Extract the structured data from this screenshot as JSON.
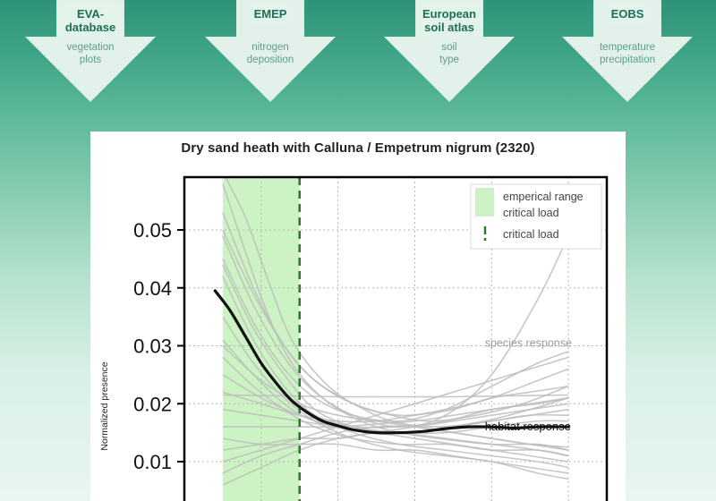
{
  "sources": [
    {
      "title": "EVA-\ndatabase",
      "subtitle": "vegetation\nplots"
    },
    {
      "title": "EMEP",
      "subtitle": "nitrogen\ndeposition"
    },
    {
      "title": "European\nsoil atlas",
      "subtitle": "soil\ntype"
    },
    {
      "title": "EOBS",
      "subtitle": "temperature\nprecipitation"
    }
  ],
  "colors": {
    "accent": "#1c6e58",
    "critical_line": "#2a7a2a",
    "range_fill": "#cdf3c4",
    "species": "#bdbdbd",
    "habitat": "#111111"
  },
  "chart_data": {
    "type": "line",
    "title": "Dry sand heath with Calluna / Empetrum nigrum (2320)",
    "ylabel": "Normalized presence",
    "xlabel": "",
    "ylim": [
      0.0,
      0.058
    ],
    "xlim": [
      0,
      55
    ],
    "yticks": [
      {
        "v": 0.01,
        "label": "0.01"
      },
      {
        "v": 0.02,
        "label": "0.02"
      },
      {
        "v": 0.03,
        "label": "0.03"
      },
      {
        "v": 0.04,
        "label": "0.04"
      },
      {
        "v": 0.05,
        "label": "0.05"
      }
    ],
    "xgrid": [
      10,
      20,
      30,
      40,
      50
    ],
    "empirical_range": [
      5,
      15
    ],
    "critical_load": 15,
    "legend": [
      {
        "label": "emperical range\ncritical load",
        "type": "range"
      },
      {
        "label": "critical load",
        "type": "dashed-line"
      }
    ],
    "annotations": [
      {
        "text": "species response",
        "x": 39,
        "y": 0.0305,
        "series": "species"
      },
      {
        "text": "habitat response",
        "x": 39,
        "y": 0.016,
        "series": "habitat"
      }
    ],
    "series": [
      {
        "name": "habitat response",
        "kind": "habitat",
        "x": [
          4,
          6,
          8,
          10,
          12,
          14,
          16,
          18,
          20,
          22,
          25,
          28,
          31,
          34,
          37,
          40,
          43,
          46,
          50
        ],
        "y": [
          0.0395,
          0.036,
          0.0315,
          0.027,
          0.0235,
          0.0205,
          0.0185,
          0.017,
          0.0162,
          0.0155,
          0.015,
          0.015,
          0.0152,
          0.0157,
          0.016,
          0.016,
          0.0158,
          0.016,
          0.016
        ]
      },
      {
        "name": "s1",
        "kind": "species",
        "x": [
          5,
          8,
          11,
          14,
          18,
          22,
          27,
          32,
          38,
          44,
          50
        ],
        "y": [
          0.06,
          0.052,
          0.041,
          0.031,
          0.024,
          0.02,
          0.018,
          0.017,
          0.018,
          0.02,
          0.023
        ]
      },
      {
        "name": "s2",
        "kind": "species",
        "x": [
          5,
          8,
          11,
          14,
          18,
          23,
          28,
          33,
          40,
          46,
          50
        ],
        "y": [
          0.058,
          0.046,
          0.035,
          0.027,
          0.021,
          0.017,
          0.015,
          0.014,
          0.013,
          0.013,
          0.012
        ]
      },
      {
        "name": "s3",
        "kind": "species",
        "x": [
          5,
          9,
          13,
          17,
          22,
          27,
          33,
          39,
          45,
          50
        ],
        "y": [
          0.053,
          0.04,
          0.03,
          0.024,
          0.02,
          0.017,
          0.016,
          0.017,
          0.019,
          0.021
        ]
      },
      {
        "name": "s4",
        "kind": "species",
        "x": [
          5,
          9,
          13,
          17,
          22,
          28,
          34,
          40,
          46,
          50
        ],
        "y": [
          0.049,
          0.037,
          0.028,
          0.022,
          0.018,
          0.016,
          0.018,
          0.025,
          0.038,
          0.049
        ]
      },
      {
        "name": "s5",
        "kind": "species",
        "x": [
          5,
          9,
          13,
          17,
          22,
          28,
          34,
          40,
          46,
          50
        ],
        "y": [
          0.045,
          0.034,
          0.026,
          0.021,
          0.018,
          0.017,
          0.019,
          0.023,
          0.027,
          0.029
        ]
      },
      {
        "name": "s6",
        "kind": "species",
        "x": [
          5,
          9,
          13,
          17,
          22,
          28,
          34,
          40,
          46,
          50
        ],
        "y": [
          0.042,
          0.031,
          0.023,
          0.018,
          0.015,
          0.013,
          0.012,
          0.011,
          0.01,
          0.009
        ]
      },
      {
        "name": "s7",
        "kind": "species",
        "x": [
          5,
          9,
          13,
          17,
          22,
          28,
          34,
          40,
          46,
          50
        ],
        "y": [
          0.038,
          0.029,
          0.022,
          0.018,
          0.016,
          0.015,
          0.015,
          0.016,
          0.017,
          0.017
        ]
      },
      {
        "name": "s8",
        "kind": "species",
        "x": [
          5,
          9,
          13,
          17,
          22,
          28,
          34,
          40,
          46,
          50
        ],
        "y": [
          0.035,
          0.027,
          0.021,
          0.017,
          0.014,
          0.012,
          0.011,
          0.01,
          0.008,
          0.007
        ]
      },
      {
        "name": "s9",
        "kind": "species",
        "x": [
          5,
          9,
          13,
          17,
          22,
          28,
          34,
          40,
          46,
          50
        ],
        "y": [
          0.031,
          0.025,
          0.02,
          0.017,
          0.016,
          0.016,
          0.017,
          0.019,
          0.02,
          0.021
        ]
      },
      {
        "name": "s10",
        "kind": "species",
        "x": [
          5,
          9,
          13,
          17,
          22,
          28,
          34,
          40,
          46,
          50
        ],
        "y": [
          0.028,
          0.023,
          0.019,
          0.016,
          0.014,
          0.013,
          0.013,
          0.012,
          0.012,
          0.011
        ]
      },
      {
        "name": "s11",
        "kind": "species",
        "x": [
          5,
          10,
          15,
          20,
          25,
          30,
          35,
          40,
          45,
          50
        ],
        "y": [
          0.025,
          0.021,
          0.018,
          0.016,
          0.015,
          0.015,
          0.016,
          0.017,
          0.018,
          0.019
        ]
      },
      {
        "name": "s12",
        "kind": "species",
        "x": [
          5,
          10,
          15,
          20,
          25,
          30,
          35,
          40,
          45,
          50
        ],
        "y": [
          0.022,
          0.02,
          0.018,
          0.017,
          0.017,
          0.018,
          0.019,
          0.021,
          0.022,
          0.023
        ]
      },
      {
        "name": "s13",
        "kind": "species",
        "x": [
          5,
          10,
          15,
          20,
          25,
          30,
          35,
          40,
          45,
          50
        ],
        "y": [
          0.0215,
          0.0214,
          0.0213,
          0.0212,
          0.0212,
          0.0212,
          0.0212,
          0.0213,
          0.0214,
          0.0215
        ]
      },
      {
        "name": "s14",
        "kind": "species",
        "x": [
          5,
          10,
          15,
          20,
          25,
          30,
          35,
          40,
          45,
          50
        ],
        "y": [
          0.019,
          0.018,
          0.017,
          0.016,
          0.015,
          0.014,
          0.013,
          0.012,
          0.011,
          0.01
        ]
      },
      {
        "name": "s15",
        "kind": "species",
        "x": [
          5,
          10,
          15,
          20,
          25,
          30,
          35,
          40,
          45,
          50
        ],
        "y": [
          0.016,
          0.016,
          0.016,
          0.016,
          0.0165,
          0.017,
          0.018,
          0.019,
          0.02,
          0.021
        ]
      },
      {
        "name": "s16",
        "kind": "species",
        "x": [
          5,
          10,
          15,
          20,
          25,
          30,
          35,
          40,
          45,
          50
        ],
        "y": [
          0.014,
          0.013,
          0.013,
          0.013,
          0.012,
          0.012,
          0.011,
          0.01,
          0.009,
          0.008
        ]
      },
      {
        "name": "s17",
        "kind": "species",
        "x": [
          5,
          10,
          15,
          20,
          25,
          30,
          35,
          40,
          45,
          50
        ],
        "y": [
          0.012,
          0.013,
          0.014,
          0.014,
          0.015,
          0.015,
          0.016,
          0.017,
          0.018,
          0.018
        ]
      },
      {
        "name": "s18",
        "kind": "species",
        "x": [
          5,
          10,
          15,
          20,
          25,
          30,
          35,
          40,
          45,
          50
        ],
        "y": [
          0.01,
          0.012,
          0.014,
          0.016,
          0.018,
          0.02,
          0.022,
          0.024,
          0.026,
          0.028
        ]
      },
      {
        "name": "s19",
        "kind": "species",
        "x": [
          5,
          10,
          15,
          20,
          25,
          30,
          35,
          40,
          45,
          50
        ],
        "y": [
          0.008,
          0.011,
          0.013,
          0.015,
          0.016,
          0.016,
          0.015,
          0.014,
          0.013,
          0.012
        ]
      },
      {
        "name": "s20",
        "kind": "species",
        "x": [
          5,
          9,
          13,
          17,
          22,
          28,
          34,
          40,
          46,
          50
        ],
        "y": [
          0.05,
          0.039,
          0.03,
          0.024,
          0.02,
          0.018,
          0.019,
          0.021,
          0.024,
          0.026
        ]
      },
      {
        "name": "s21",
        "kind": "species",
        "x": [
          5,
          9,
          13,
          17,
          22,
          28,
          34,
          40,
          46,
          50
        ],
        "y": [
          0.044,
          0.033,
          0.025,
          0.019,
          0.016,
          0.015,
          0.014,
          0.013,
          0.012,
          0.011
        ]
      },
      {
        "name": "s22",
        "kind": "species",
        "x": [
          5,
          10,
          15,
          20,
          25,
          30,
          35,
          40,
          45,
          50
        ],
        "y": [
          0.006,
          0.009,
          0.012,
          0.014,
          0.015,
          0.016,
          0.017,
          0.018,
          0.019,
          0.02
        ]
      },
      {
        "name": "s23",
        "kind": "species",
        "x": [
          5,
          10,
          15,
          20,
          25,
          30,
          35,
          40,
          45,
          50
        ],
        "y": [
          0.03,
          0.024,
          0.02,
          0.018,
          0.017,
          0.016,
          0.015,
          0.014,
          0.013,
          0.0125
        ]
      }
    ]
  }
}
